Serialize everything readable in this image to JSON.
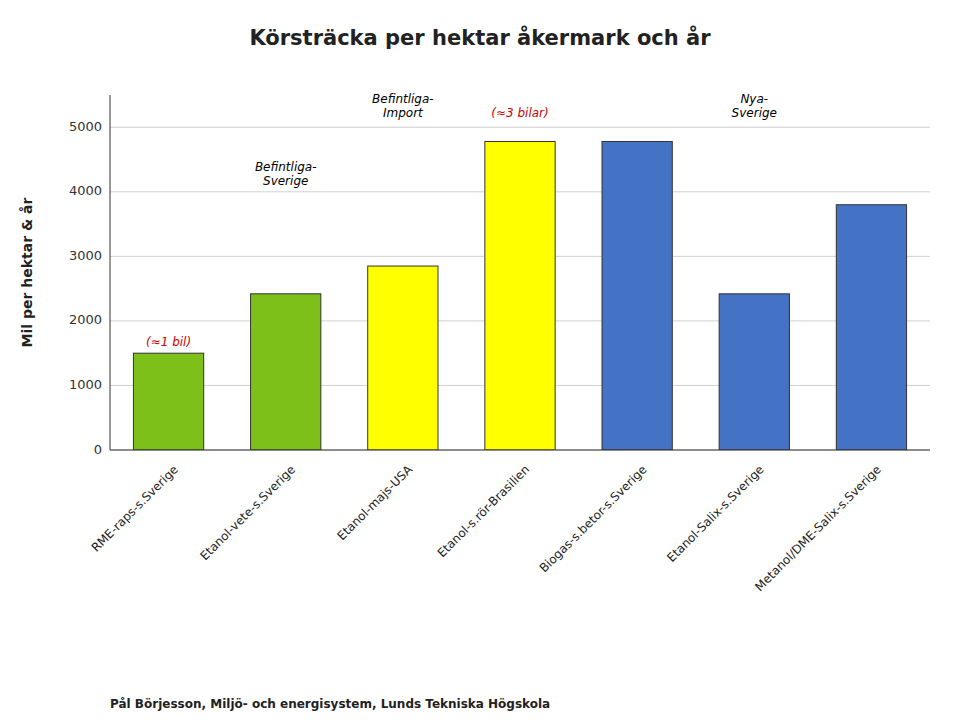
{
  "chart_data": {
    "type": "bar",
    "title": "Körsträcka per hektar åkermark och år",
    "ylabel": "Mil per hektar & år",
    "categories": [
      "RME-raps-s.Sverige",
      "Etanol-vete-s.Sverige",
      "Etanol-majs-USA",
      "Etanol-s.rör-Brasilien",
      "Biogas-s.betor-s.Sverige",
      "Etanol-Salix-s.Sverige",
      "Metanol/DME-Salix-s.Sverige"
    ],
    "values": [
      1500,
      2420,
      2850,
      4780,
      4780,
      2420,
      3800
    ],
    "colors": [
      "#7DC01A",
      "#7DC01A",
      "#FFFF00",
      "#FFFF00",
      "#4472C4",
      "#4472C4",
      "#4472C4"
    ],
    "ylim": [
      0,
      5500
    ],
    "yticks": [
      0,
      1000,
      2000,
      3000,
      4000,
      5000
    ],
    "grid": true,
    "annotations": [
      {
        "text": "(≈1 bil)",
        "x": 0,
        "y": 1550,
        "color": "#CC0000"
      },
      {
        "text": "Befintliga-\nSverige",
        "x": 1,
        "y": 4050,
        "color": "#000000"
      },
      {
        "text": "Befintliga-\nImport",
        "x": 2,
        "y": 5100,
        "color": "#000000"
      },
      {
        "text": "(≈3 bilar)",
        "x": 3,
        "y": 5100,
        "color": "#CC0000"
      },
      {
        "text": "Nya-\nSverige",
        "x": 5,
        "y": 5100,
        "color": "#000000"
      }
    ],
    "footer": "Pål Börjesson, Miljö- och energisystem, Lunds Tekniska Högskola"
  }
}
